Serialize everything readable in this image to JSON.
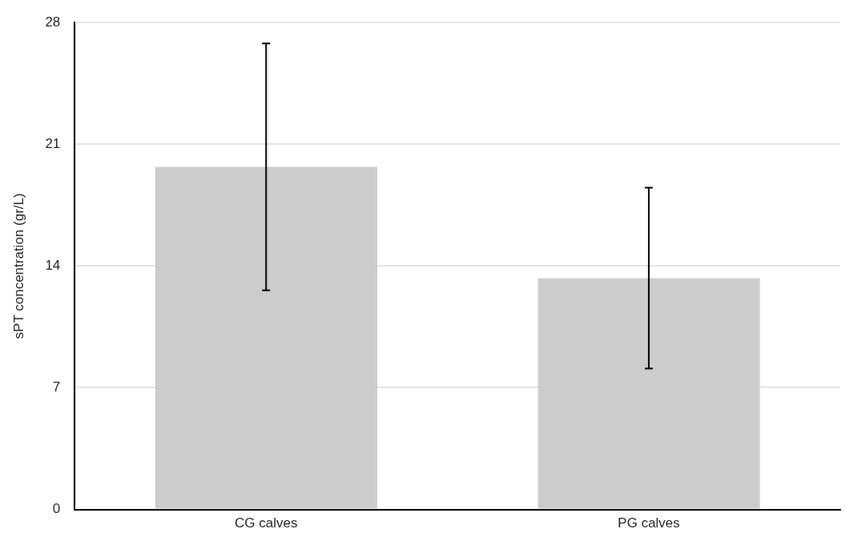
{
  "chart_data": {
    "type": "bar",
    "ylabel": "sPT concentration (gr/L)",
    "categories": [
      "CG calves",
      "PG calves"
    ],
    "values": [
      19.7,
      13.3
    ],
    "errors": [
      7.1,
      5.2
    ],
    "color": "#cccccc",
    "ylim": [
      0,
      28
    ],
    "yticks": [
      0,
      7,
      14,
      21,
      28
    ],
    "grid": "y"
  }
}
